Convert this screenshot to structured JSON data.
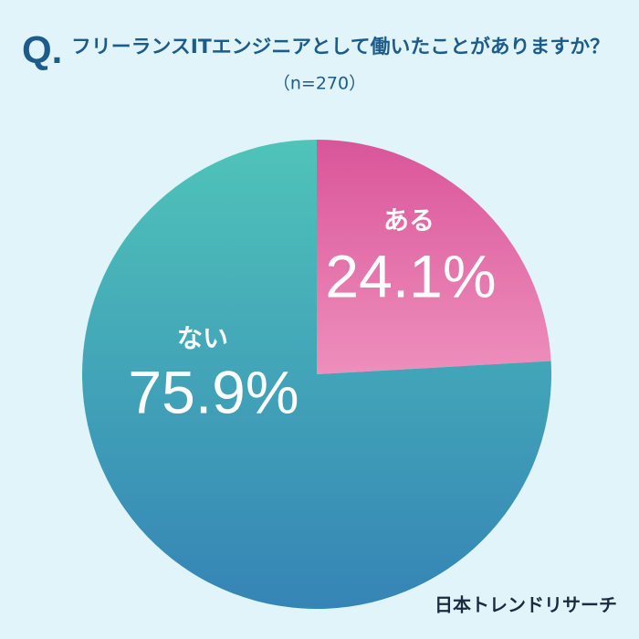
{
  "chart_data": {
    "type": "pie",
    "title_prefix": "Q.",
    "title": "フリーランスITエンジニアとして働いたことがありますか？",
    "subtitle": "（n=270）",
    "categories": [
      "ある",
      "ない"
    ],
    "values": [
      24.1,
      75.9
    ],
    "value_labels": [
      "24.1%",
      "75.9%"
    ],
    "colors": [
      [
        "#d9559a",
        "#ee8fbc"
      ],
      [
        "#4fc4b9",
        "#3584b6"
      ]
    ],
    "source": "日本トレンドリサーチ"
  }
}
